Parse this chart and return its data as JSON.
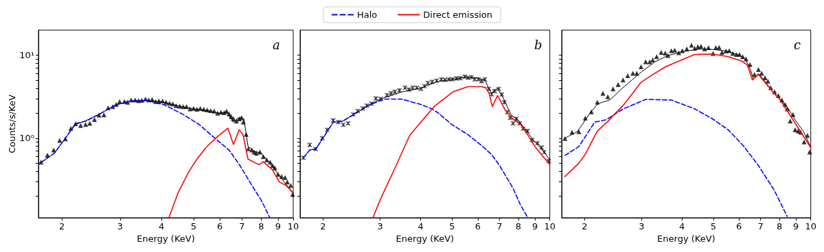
{
  "chart_data": [
    {
      "type": "line",
      "annotations": [
        "a"
      ],
      "xlabel": "Energy (KeV)",
      "ylabel": "Counts/s/KeV",
      "log": "xy",
      "xlim": [
        1.7,
        10
      ],
      "ylim": [
        0.11,
        20
      ],
      "xticks": [
        2,
        3,
        4,
        5,
        6,
        7,
        8,
        9,
        10
      ],
      "yticks": [
        {
          "value": 0.2,
          "label": null
        },
        {
          "value": 0.3,
          "label": null
        },
        {
          "value": 0.4,
          "label": null
        },
        {
          "value": 0.5,
          "label": null
        },
        {
          "value": 0.6,
          "label": null
        },
        {
          "value": 0.7,
          "label": null
        },
        {
          "value": 0.8,
          "label": null
        },
        {
          "value": 0.9,
          "label": null
        },
        {
          "value": 1,
          "label": "10⁰"
        },
        {
          "value": 2,
          "label": null
        },
        {
          "value": 3,
          "label": null
        },
        {
          "value": 4,
          "label": null
        },
        {
          "value": 5,
          "label": null
        },
        {
          "value": 6,
          "label": null
        },
        {
          "value": 7,
          "label": null
        },
        {
          "value": 8,
          "label": null
        },
        {
          "value": 9,
          "label": null
        },
        {
          "value": 10,
          "label": "10¹"
        }
      ],
      "legend": "top",
      "series": [
        {
          "type": "scatter",
          "marker": "triangle",
          "color": "#000000",
          "x": [
            1.73,
            1.81,
            1.89,
            1.97,
            2.05,
            2.13,
            2.2,
            2.28,
            2.36,
            2.43,
            2.51,
            2.59,
            2.68,
            2.76,
            2.85,
            2.92,
            2.99,
            3.09,
            3.16,
            3.24,
            3.33,
            3.41,
            3.49,
            3.58,
            3.66,
            3.75,
            3.84,
            3.93,
            4.03,
            4.13,
            4.23,
            4.33,
            4.43,
            4.54,
            4.65,
            4.76,
            4.88,
            5.0,
            5.12,
            5.24,
            5.37,
            5.5,
            5.63,
            5.77,
            5.91,
            6.05,
            6.19,
            6.29,
            6.4,
            6.5,
            6.6,
            6.74,
            6.87,
            6.98,
            7.07,
            7.21,
            7.32,
            7.5,
            7.62,
            7.74,
            7.93,
            8.12,
            8.32,
            8.52,
            8.66,
            8.8,
            9.0,
            9.22,
            9.45,
            9.6,
            9.83,
            9.96
          ],
          "values": [
            0.514,
            0.626,
            0.721,
            0.94,
            0.98,
            1.31,
            1.49,
            1.42,
            1.46,
            1.51,
            1.68,
            1.9,
            1.91,
            2.32,
            2.4,
            2.55,
            2.76,
            2.76,
            2.71,
            2.88,
            2.88,
            2.83,
            2.85,
            2.97,
            2.88,
            2.93,
            2.76,
            2.8,
            2.8,
            2.71,
            2.63,
            2.58,
            2.47,
            2.43,
            2.4,
            2.4,
            2.25,
            2.28,
            2.23,
            2.28,
            2.23,
            2.19,
            2.15,
            2.12,
            2.0,
            2.06,
            2.03,
            2.12,
            1.96,
            1.82,
            1.71,
            1.61,
            1.71,
            1.76,
            1.56,
            1.11,
            0.744,
            0.721,
            0.68,
            0.658,
            0.68,
            0.6,
            0.547,
            0.514,
            0.469,
            0.441,
            0.367,
            0.345,
            0.335,
            0.296,
            0.27,
            0.21
          ]
        },
        {
          "color": "#000000",
          "x": [
            1.73,
            1.9,
            2.05,
            2.2,
            2.36,
            2.6,
            2.9,
            3.2,
            3.6,
            4.0,
            4.5,
            5.0,
            5.5,
            6.0,
            6.3,
            6.6,
            6.75,
            6.95,
            7.1,
            7.3,
            7.6,
            8.0,
            8.5,
            9.0,
            9.5,
            10
          ],
          "values": [
            0.51,
            0.66,
            1.0,
            1.46,
            1.62,
            1.95,
            2.5,
            2.8,
            2.85,
            2.75,
            2.45,
            2.25,
            2.15,
            2.0,
            2.05,
            1.55,
            1.7,
            1.78,
            1.7,
            0.8,
            0.7,
            0.66,
            0.5,
            0.37,
            0.28,
            0.22
          ]
        },
        {
          "name": "Halo",
          "color": "#0000ff",
          "line_style": "dashed",
          "x": [
            1.73,
            1.9,
            2.05,
            2.2,
            2.36,
            2.6,
            2.9,
            3.2,
            3.6,
            4.1,
            4.65,
            5.2,
            5.8,
            6.4,
            6.9,
            7.5,
            8.0,
            8.5
          ],
          "values": [
            0.51,
            0.66,
            1.0,
            1.5,
            1.6,
            1.95,
            2.5,
            2.8,
            2.85,
            2.5,
            1.93,
            1.46,
            1.0,
            0.72,
            0.47,
            0.27,
            0.18,
            0.11
          ]
        },
        {
          "name": "Direct emission",
          "color": "#ff0000",
          "line_style": "solid",
          "x": [
            4.21,
            4.5,
            4.83,
            5.1,
            5.45,
            5.9,
            6.35,
            6.6,
            6.87,
            7.05,
            7.3,
            7.5,
            7.87,
            8.12,
            8.66,
            9.08,
            9.52,
            10
          ],
          "values": [
            0.11,
            0.224,
            0.39,
            0.547,
            0.77,
            1.04,
            1.32,
            0.84,
            1.26,
            1.11,
            0.56,
            0.53,
            0.48,
            0.52,
            0.415,
            0.296,
            0.27,
            0.217
          ]
        }
      ]
    },
    {
      "type": "line",
      "annotations": [
        "b"
      ],
      "xlabel": "Energy (KeV)",
      "log": "xy",
      "tick_labels": "x",
      "xlim": [
        1.7,
        10
      ],
      "ylim": [
        0.11,
        20
      ],
      "xticks": [
        2,
        3,
        4,
        5,
        6,
        7,
        8,
        9,
        10
      ],
      "yticks": [
        {
          "value": 0.2,
          "label": null
        },
        {
          "value": 0.3,
          "label": null
        },
        {
          "value": 0.4,
          "label": null
        },
        {
          "value": 0.5,
          "label": null
        },
        {
          "value": 0.6,
          "label": null
        },
        {
          "value": 0.7,
          "label": null
        },
        {
          "value": 0.8,
          "label": null
        },
        {
          "value": 0.9,
          "label": null
        },
        {
          "value": 1,
          "label": null
        },
        {
          "value": 2,
          "label": null
        },
        {
          "value": 3,
          "label": null
        },
        {
          "value": 4,
          "label": null
        },
        {
          "value": 5,
          "label": null
        },
        {
          "value": 6,
          "label": null
        },
        {
          "value": 7,
          "label": null
        },
        {
          "value": 8,
          "label": null
        },
        {
          "value": 9,
          "label": null
        },
        {
          "value": 10,
          "label": null
        }
      ],
      "series": [
        {
          "type": "scatter",
          "marker": "cross",
          "color": "#000000",
          "x": [
            1.74,
            1.82,
            1.9,
            1.99,
            2.06,
            2.15,
            2.23,
            2.31,
            2.39,
            2.48,
            2.56,
            2.65,
            2.73,
            2.82,
            2.91,
            3.01,
            3.15,
            3.24,
            3.33,
            3.44,
            3.58,
            3.68,
            3.78,
            3.89,
            4.01,
            4.11,
            4.21,
            4.34,
            4.48,
            4.63,
            4.75,
            4.89,
            5.01,
            5.16,
            5.3,
            5.47,
            5.6,
            5.74,
            5.87,
            6.02,
            6.16,
            6.31,
            6.49,
            6.62,
            6.76,
            6.96,
            7.11,
            7.24,
            7.4,
            7.55,
            7.7,
            7.88,
            8.07,
            8.27,
            8.53,
            8.81,
            9.16,
            9.43,
            9.61,
            9.92
          ],
          "values": [
            0.58,
            0.83,
            0.74,
            1.0,
            1.26,
            1.64,
            1.56,
            1.45,
            1.51,
            1.93,
            2.12,
            2.28,
            2.47,
            2.6,
            3.01,
            2.97,
            3.3,
            3.47,
            3.62,
            3.76,
            4.05,
            3.85,
            4.05,
            4.05,
            3.92,
            4.22,
            4.63,
            4.77,
            4.92,
            5.11,
            5.02,
            5.11,
            5.11,
            5.24,
            5.27,
            5.5,
            5.33,
            5.43,
            5.11,
            5.11,
            4.86,
            5.11,
            3.92,
            3.36,
            3.69,
            3.92,
            3.36,
            2.71,
            2.06,
            1.76,
            1.51,
            1.71,
            1.51,
            1.3,
            1.22,
            0.95,
            0.87,
            0.77,
            0.68,
            0.53
          ]
        },
        {
          "color": "#000000",
          "x": [
            1.74,
            1.82,
            1.9,
            2.0,
            2.15,
            2.3,
            2.5,
            2.8,
            3.0,
            3.5,
            4.0,
            4.5,
            5.0,
            5.5,
            6.0,
            6.3,
            6.6,
            6.9,
            7.2,
            7.6,
            8.0,
            8.5,
            9.0,
            9.5,
            10
          ],
          "values": [
            0.58,
            0.72,
            0.74,
            1.0,
            1.55,
            1.6,
            1.95,
            2.55,
            2.95,
            3.6,
            4.0,
            4.8,
            5.1,
            5.4,
            5.3,
            5.0,
            3.5,
            4.0,
            3.0,
            1.9,
            1.65,
            1.2,
            0.9,
            0.72,
            0.55
          ]
        },
        {
          "color": "#0000ff",
          "line_style": "dashed",
          "x": [
            1.74,
            1.82,
            1.9,
            2.0,
            2.15,
            2.3,
            2.5,
            2.8,
            3.1,
            3.5,
            4.0,
            4.34,
            4.5,
            5.0,
            5.6,
            6.2,
            6.6,
            7.0,
            7.7,
            8.1,
            8.55
          ],
          "values": [
            0.58,
            0.72,
            0.74,
            1.0,
            1.55,
            1.6,
            1.95,
            2.55,
            2.95,
            2.95,
            2.55,
            2.25,
            2.05,
            1.45,
            1.1,
            0.8,
            0.64,
            0.47,
            0.25,
            0.16,
            0.11
          ]
        },
        {
          "color": "#ff0000",
          "line_style": "solid",
          "x": [
            2.85,
            3.01,
            3.3,
            3.7,
            4.03,
            4.4,
            5.03,
            5.6,
            6.16,
            6.35,
            6.5,
            6.65,
            6.9,
            7.28,
            7.7,
            8.2,
            9.0,
            10
          ],
          "values": [
            0.11,
            0.186,
            0.4,
            1.08,
            1.61,
            2.4,
            3.62,
            4.17,
            4.17,
            4.05,
            3.47,
            2.4,
            3.26,
            2.19,
            1.71,
            1.42,
            0.79,
            0.48
          ]
        }
      ]
    },
    {
      "type": "line",
      "annotations": [
        "c"
      ],
      "xlabel": "Energy (KeV)",
      "log": "xy",
      "tick_labels": "x",
      "xlim": [
        1.7,
        10
      ],
      "ylim": [
        0.11,
        20
      ],
      "xticks": [
        2,
        3,
        4,
        5,
        6,
        7,
        8,
        9,
        10
      ],
      "yticks": [
        {
          "value": 0.2,
          "label": null
        },
        {
          "value": 0.3,
          "label": null
        },
        {
          "value": 0.4,
          "label": null
        },
        {
          "value": 0.5,
          "label": null
        },
        {
          "value": 0.6,
          "label": null
        },
        {
          "value": 0.7,
          "label": null
        },
        {
          "value": 0.8,
          "label": null
        },
        {
          "value": 0.9,
          "label": null
        },
        {
          "value": 1,
          "label": null
        },
        {
          "value": 2,
          "label": null
        },
        {
          "value": 3,
          "label": null
        },
        {
          "value": 4,
          "label": null
        },
        {
          "value": 5,
          "label": null
        },
        {
          "value": 6,
          "label": null
        },
        {
          "value": 7,
          "label": null
        },
        {
          "value": 8,
          "label": null
        },
        {
          "value": 9,
          "label": null
        },
        {
          "value": 10,
          "label": null
        }
      ],
      "series": [
        {
          "type": "scatter",
          "marker": "triangle",
          "color": "#000000",
          "x": [
            1.74,
            1.83,
            1.92,
            2.01,
            2.1,
            2.19,
            2.28,
            2.36,
            2.45,
            2.54,
            2.63,
            2.72,
            2.82,
            2.9,
            2.99,
            3.09,
            3.18,
            3.25,
            3.34,
            3.45,
            3.55,
            3.62,
            3.71,
            3.8,
            3.91,
            4.01,
            4.14,
            4.28,
            4.38,
            4.48,
            4.58,
            4.7,
            4.83,
            4.99,
            5.09,
            5.21,
            5.32,
            5.47,
            5.6,
            5.74,
            5.89,
            6.02,
            6.16,
            6.31,
            6.49,
            6.7,
            6.89,
            7.05,
            7.22,
            7.37,
            7.52,
            7.73,
            7.94,
            8.14,
            8.33,
            8.46,
            8.64,
            8.81,
            8.95,
            9.14,
            9.31,
            9.54,
            9.77,
            9.92
          ],
          "values": [
            0.99,
            1.18,
            1.2,
            1.74,
            2.08,
            2.71,
            3.47,
            3.16,
            3.92,
            4.43,
            5.02,
            5.67,
            6.04,
            6.04,
            7.24,
            8.32,
            8.32,
            8.74,
            9.59,
            10.8,
            10.6,
            9.89,
            11.3,
            11.5,
            10.7,
            11.3,
            11.9,
            13.2,
            12.1,
            12.6,
            12.8,
            11.9,
            12.3,
            10.5,
            12.3,
            12.4,
            10.8,
            11.2,
            11.3,
            10.5,
            10.2,
            10.2,
            9.59,
            9.0,
            7.71,
            5.85,
            6.7,
            6.04,
            5.34,
            4.86,
            4.05,
            3.62,
            3.26,
            2.88,
            2.55,
            2.25,
            1.61,
            1.93,
            1.26,
            1.22,
            1.18,
            0.9,
            1.08,
            0.68
          ]
        },
        {
          "color": "#000000",
          "x": [
            1.74,
            1.9,
            2.0,
            2.1,
            2.2,
            2.4,
            2.6,
            2.8,
            3.0,
            3.3,
            3.6,
            4.0,
            4.5,
            5.0,
            5.5,
            6.0,
            6.3,
            6.5,
            6.65,
            6.9,
            7.2,
            7.6,
            8.0,
            8.5,
            9.0,
            9.5,
            10
          ],
          "values": [
            1.0,
            1.2,
            1.6,
            2.1,
            2.6,
            2.9,
            3.9,
            5.0,
            6.3,
            8.3,
            9.8,
            11.0,
            11.8,
            11.7,
            11.2,
            10.0,
            8.8,
            6.8,
            5.2,
            6.0,
            4.9,
            3.7,
            3.0,
            2.3,
            1.6,
            1.2,
            0.78
          ]
        },
        {
          "color": "#0000ff",
          "line_style": "dashed",
          "x": [
            1.74,
            1.92,
            2.15,
            2.33,
            2.63,
            3.09,
            3.71,
            4.38,
            4.97,
            5.56,
            6.18,
            6.89,
            7.7,
            8.46
          ],
          "values": [
            0.62,
            0.79,
            1.56,
            1.66,
            2.25,
            2.93,
            2.88,
            2.25,
            1.71,
            1.26,
            0.816,
            0.469,
            0.238,
            0.114
          ]
        },
        {
          "color": "#ff0000",
          "line_style": "solid",
          "x": [
            1.74,
            1.92,
            2.01,
            2.19,
            2.35,
            2.47,
            2.63,
            2.99,
            3.34,
            3.56,
            3.91,
            4.38,
            4.97,
            5.56,
            6.12,
            6.37,
            6.6,
            6.89,
            7.7,
            8.0,
            8.95,
            10
          ],
          "values": [
            0.345,
            0.499,
            0.638,
            1.22,
            1.56,
            1.93,
            2.47,
            4.71,
            6.23,
            7.24,
            8.47,
            10.2,
            10.3,
            9.59,
            8.47,
            7.6,
            5.02,
            5.85,
            3.47,
            2.97,
            1.51,
            0.77
          ]
        }
      ]
    }
  ]
}
